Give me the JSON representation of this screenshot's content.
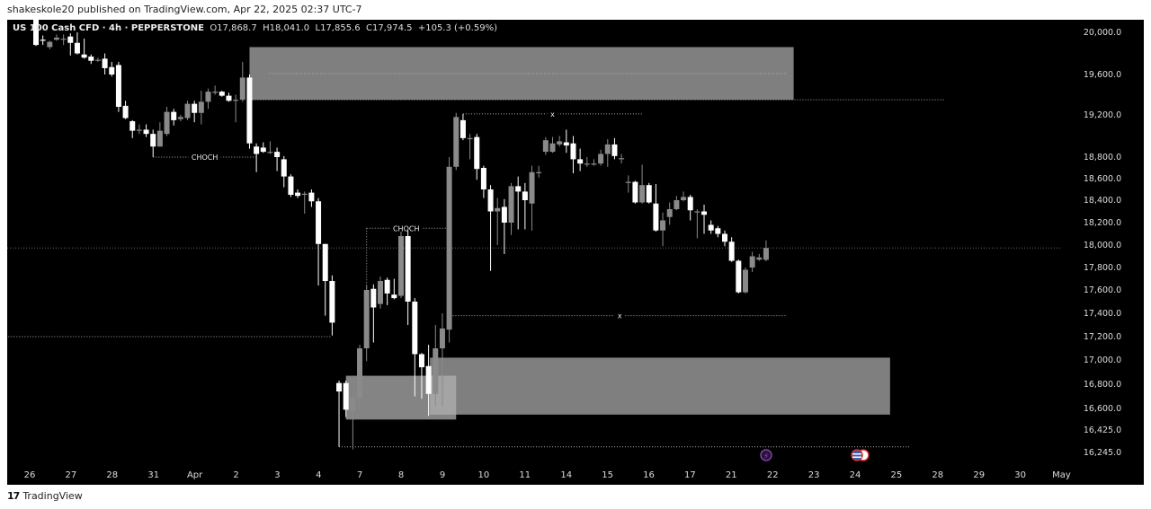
{
  "published": "shakeskole20 published on TradingView.com, Apr 22, 2025 02:37 UTC-7",
  "legend": {
    "symbol": "US 100 Cash CFD · 4h · PEPPERSTONE",
    "open": "O17,868.7",
    "high": "H18,041.0",
    "low": "L17,855.6",
    "close": "C17,974.5",
    "change": "+105.3 (+0.59%)"
  },
  "footer": {
    "logo": "TradingView"
  },
  "colors": {
    "background": "#000000",
    "bear_candle": "#ffffff",
    "bull_candle": "#8a8a8a",
    "zone": "#7f7f7f",
    "zone_light": "#b0b0b0",
    "event_lightning": "#9b4fc9",
    "event_flag": "#d32f2f"
  },
  "events": [
    {
      "icon": "lightning-icon",
      "date": "22"
    },
    {
      "icon": "us-flag-icon",
      "date": "24"
    }
  ],
  "chart_data": {
    "type": "candlestick",
    "title": "",
    "interval": "4h",
    "y_ticks": [
      "20,000.0",
      "19,600.0",
      "19,200.0",
      "18,800.0",
      "18,600.0",
      "18,400.0",
      "18,200.0",
      "18,000.0",
      "17,800.0",
      "17,600.0",
      "17,400.0",
      "17,200.0",
      "17,000.0",
      "16,800.0",
      "16,600.0",
      "16,425.0",
      "16,245.0"
    ],
    "y_tick_values": [
      20000,
      19600,
      19200,
      18800,
      18600,
      18400,
      18200,
      18000,
      17800,
      17600,
      17400,
      17200,
      17000,
      16800,
      16600,
      16425,
      16245
    ],
    "x_ticks": [
      "26",
      "27",
      "28",
      "31",
      "Apr",
      "2",
      "3",
      "4",
      "7",
      "8",
      "9",
      "10",
      "11",
      "14",
      "15",
      "16",
      "17",
      "21",
      "22",
      "23",
      "24",
      "25",
      "28",
      "29",
      "30",
      "May"
    ],
    "last_price": 17974.5,
    "candles": [
      [
        20150,
        20200,
        19870,
        19880
      ],
      [
        19930,
        19970,
        19880,
        19920
      ],
      [
        19860,
        19920,
        19840,
        19910
      ],
      [
        19930,
        19980,
        19920,
        19950
      ],
      [
        19940,
        19980,
        19880,
        19940
      ],
      [
        19960,
        19990,
        19780,
        19900
      ],
      [
        19900,
        20000,
        19790,
        19800
      ],
      [
        19790,
        19940,
        19750,
        19760
      ],
      [
        19770,
        19790,
        19700,
        19730
      ],
      [
        19740,
        19760,
        19720,
        19740
      ],
      [
        19750,
        19800,
        19600,
        19660
      ],
      [
        19670,
        19720,
        19580,
        19600
      ],
      [
        19690,
        19720,
        19230,
        19280
      ],
      [
        19290,
        19340,
        19160,
        19170
      ],
      [
        19140,
        19150,
        18980,
        19050
      ],
      [
        19060,
        19110,
        19020,
        19060
      ],
      [
        19060,
        19110,
        18990,
        19020
      ],
      [
        19020,
        19060,
        18800,
        18900
      ],
      [
        18900,
        19130,
        18900,
        19050
      ],
      [
        19020,
        19280,
        19000,
        19230
      ],
      [
        19230,
        19260,
        19100,
        19150
      ],
      [
        19160,
        19200,
        19140,
        19180
      ],
      [
        19170,
        19340,
        19150,
        19310
      ],
      [
        19310,
        19340,
        19130,
        19220
      ],
      [
        19220,
        19440,
        19110,
        19330
      ],
      [
        19330,
        19460,
        19260,
        19430
      ],
      [
        19430,
        19490,
        19400,
        19430
      ],
      [
        19430,
        19440,
        19380,
        19390
      ],
      [
        19390,
        19420,
        19330,
        19340
      ],
      [
        19350,
        19400,
        19130,
        19350
      ],
      [
        19350,
        19720,
        19330,
        19570
      ],
      [
        19570,
        19600,
        18880,
        18930
      ],
      [
        18900,
        18930,
        18660,
        18830
      ],
      [
        18890,
        18940,
        18840,
        18850
      ],
      [
        18850,
        18950,
        18830,
        18850
      ],
      [
        18850,
        18890,
        18670,
        18800
      ],
      [
        18780,
        18810,
        18520,
        18620
      ],
      [
        18620,
        18640,
        18430,
        18450
      ],
      [
        18470,
        18500,
        18420,
        18440
      ],
      [
        18460,
        18480,
        18280,
        18460
      ],
      [
        18470,
        18500,
        18340,
        18390
      ],
      [
        18390,
        18420,
        17640,
        18010
      ],
      [
        18010,
        18010,
        17380,
        17680
      ],
      [
        17680,
        17730,
        17210,
        17320
      ],
      [
        16810,
        16830,
        16290,
        16740
      ],
      [
        16810,
        16830,
        16530,
        16590
      ],
      [
        16580,
        16710,
        16270,
        16690
      ],
      [
        16690,
        17130,
        16580,
        17100
      ],
      [
        17100,
        17640,
        16990,
        17600
      ],
      [
        17610,
        17650,
        17150,
        17450
      ],
      [
        17480,
        17720,
        17440,
        17680
      ],
      [
        17690,
        17710,
        17470,
        17570
      ],
      [
        17560,
        17700,
        17520,
        17530
      ],
      [
        17550,
        18120,
        17530,
        18080
      ],
      [
        18080,
        18130,
        17300,
        17500
      ],
      [
        17500,
        17530,
        16700,
        17050
      ],
      [
        17050,
        17060,
        16680,
        16940
      ],
      [
        16950,
        17130,
        16540,
        16720
      ],
      [
        16720,
        17300,
        16620,
        17100
      ],
      [
        17100,
        17400,
        16620,
        17270
      ],
      [
        17260,
        18800,
        17150,
        18710
      ],
      [
        18710,
        19220,
        18680,
        19180
      ],
      [
        19150,
        19210,
        18960,
        18980
      ],
      [
        18980,
        19020,
        18780,
        18980
      ],
      [
        18990,
        19020,
        18590,
        18690
      ],
      [
        18700,
        18720,
        18420,
        18500
      ],
      [
        18500,
        18540,
        17770,
        18300
      ],
      [
        18300,
        18420,
        18000,
        18330
      ],
      [
        18340,
        18410,
        17920,
        18200
      ],
      [
        18200,
        18560,
        18090,
        18530
      ],
      [
        18530,
        18620,
        18140,
        18480
      ],
      [
        18480,
        18560,
        18140,
        18400
      ],
      [
        18370,
        18720,
        18130,
        18660
      ],
      [
        18660,
        18720,
        18610,
        18660
      ],
      [
        18850,
        18990,
        18820,
        18960
      ],
      [
        18850,
        18990,
        18840,
        18930
      ],
      [
        18920,
        19000,
        18900,
        18950
      ],
      [
        18940,
        19060,
        18840,
        18910
      ],
      [
        18930,
        19000,
        18650,
        18780
      ],
      [
        18780,
        18880,
        18670,
        18740
      ],
      [
        18740,
        18800,
        18710,
        18740
      ],
      [
        18740,
        18780,
        18720,
        18740
      ],
      [
        18740,
        18870,
        18720,
        18830
      ],
      [
        18830,
        18970,
        18710,
        18920
      ],
      [
        18920,
        18980,
        18780,
        18810
      ],
      [
        18790,
        18830,
        18740,
        18790
      ],
      [
        18570,
        18630,
        18470,
        18570
      ],
      [
        18570,
        18580,
        18370,
        18380
      ],
      [
        18380,
        18730,
        18370,
        18540
      ],
      [
        18540,
        18560,
        18370,
        18380
      ],
      [
        18370,
        18550,
        18120,
        18130
      ],
      [
        18130,
        18290,
        17990,
        18220
      ],
      [
        18250,
        18380,
        18180,
        18320
      ],
      [
        18320,
        18440,
        18310,
        18400
      ],
      [
        18400,
        18480,
        18390,
        18430
      ],
      [
        18430,
        18450,
        18220,
        18310
      ],
      [
        18300,
        18320,
        18060,
        18300
      ],
      [
        18300,
        18360,
        18100,
        18270
      ],
      [
        18180,
        18220,
        18100,
        18130
      ],
      [
        18150,
        18170,
        18070,
        18100
      ],
      [
        18100,
        18130,
        17990,
        18030
      ],
      [
        18030,
        18070,
        17850,
        17860
      ],
      [
        17860,
        17870,
        17570,
        17580
      ],
      [
        17580,
        17800,
        17570,
        17780
      ],
      [
        17800,
        17940,
        17760,
        17900
      ],
      [
        17870,
        17920,
        17860,
        17890
      ],
      [
        17868.7,
        18041.0,
        17855.6,
        17974.5
      ]
    ],
    "drawings": {
      "zones": [
        {
          "name": "supply-zone",
          "from_bar": 31,
          "to_bar": 110,
          "top": 19860,
          "bottom": 19350,
          "mid_line": 19610
        },
        {
          "name": "demand-zone",
          "from_bar": 57.2,
          "to_bar": 124,
          "top": 17020,
          "bottom": 16550
        },
        {
          "name": "demand-zone-small",
          "from_bar": 45,
          "to_bar": 61,
          "top": 16870,
          "bottom": 16510
        }
      ],
      "labels": [
        {
          "text": "CHOCH",
          "price": 18800,
          "from_bar": 17,
          "to_bar": 32
        },
        {
          "text": "CHOCH",
          "price": 18150,
          "from_bar": 48,
          "to_bar": 59.5
        },
        {
          "text": "x",
          "price": 19210,
          "from_bar": 62,
          "to_bar": 88
        },
        {
          "text": "x",
          "price": 17380,
          "from_bar": 60.5,
          "to_bar": 109
        }
      ],
      "levels": [
        {
          "price": 17200,
          "from_bar": -4,
          "to_bar": 43
        },
        {
          "price": 16290,
          "from_bar": 44,
          "to_bar": 127
        },
        {
          "price": 19350,
          "from_bar": 31,
          "to_bar": 132
        }
      ]
    }
  }
}
